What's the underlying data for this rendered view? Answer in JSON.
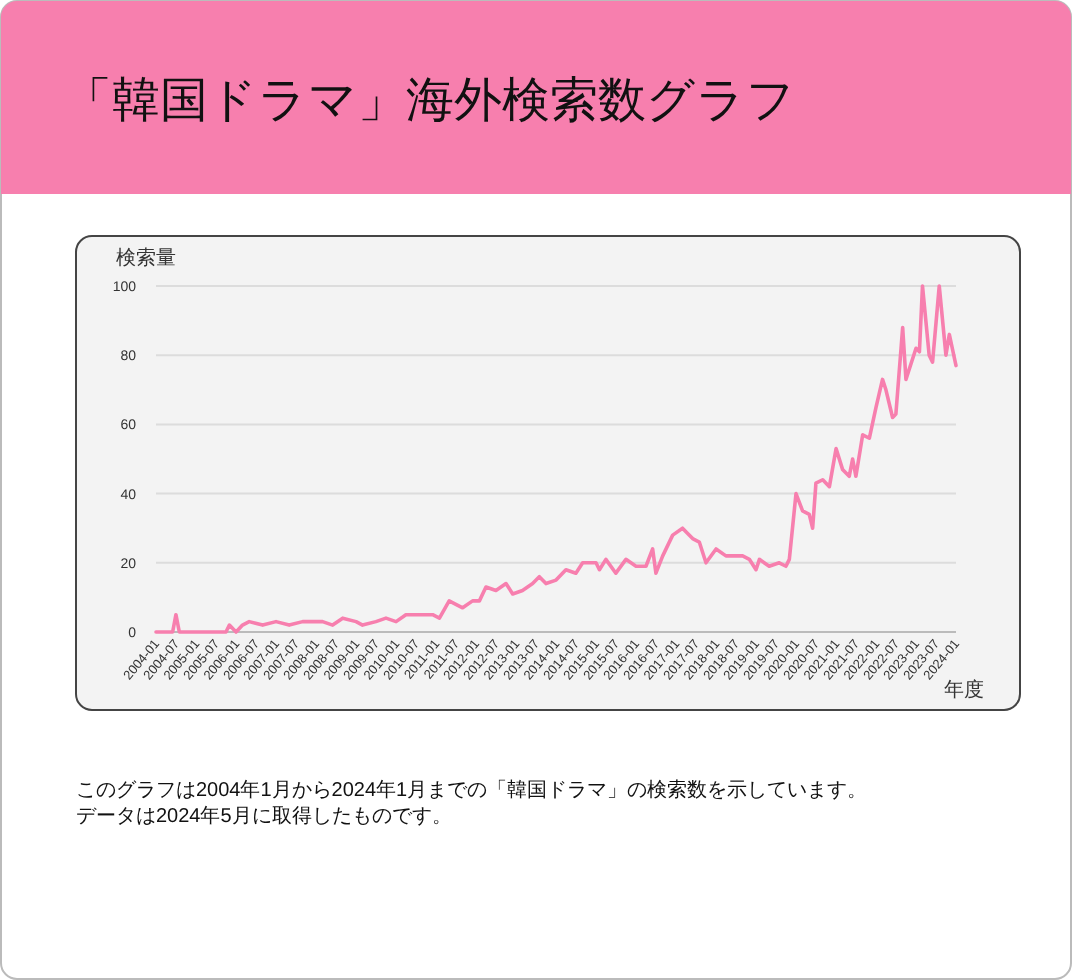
{
  "chart_data": {
    "type": "line",
    "title": "「韓国ドラマ」海外検索数グラフ",
    "ylabel": "検索量",
    "xlabel": "年度",
    "annotations": [
      "このグラフは2004年1月から2024年1月までの「韓国ドラマ」の検索数を示しています。",
      "データは2024年5月に取得したものです。"
    ],
    "series": [
      {
        "color": "#f77fae",
        "x": [
          "2004-01",
          "2004-06",
          "2004-07",
          "2004-08",
          "2005-10",
          "2005-11",
          "2006-01",
          "2006-03",
          "2006-05",
          "2006-09",
          "2007-01",
          "2007-05",
          "2007-09",
          "2008-03",
          "2008-06",
          "2008-09",
          "2009-01",
          "2009-03",
          "2009-07",
          "2009-10",
          "2010-01",
          "2010-04",
          "2010-12",
          "2011-02",
          "2011-05",
          "2011-07",
          "2011-09",
          "2011-12",
          "2012-02",
          "2012-04",
          "2012-07",
          "2012-10",
          "2012-12",
          "2013-03",
          "2013-06",
          "2013-08",
          "2013-10",
          "2014-01",
          "2014-04",
          "2014-07",
          "2014-09",
          "2015-01",
          "2015-02",
          "2015-04",
          "2015-07",
          "2015-10",
          "2016-01",
          "2016-04",
          "2016-06",
          "2016-07",
          "2016-09",
          "2016-12",
          "2017-03",
          "2017-04",
          "2017-06",
          "2017-08",
          "2017-10",
          "2018-01",
          "2018-04",
          "2018-07",
          "2018-09",
          "2018-11",
          "2019-01",
          "2019-02",
          "2019-05",
          "2019-08",
          "2019-10",
          "2019-11",
          "2020-01",
          "2020-03",
          "2020-05",
          "2020-06",
          "2020-07",
          "2020-09",
          "2020-11",
          "2021-01",
          "2021-03",
          "2021-05",
          "2021-06",
          "2021-07",
          "2021-09",
          "2021-11",
          "2022-01",
          "2022-03",
          "2022-04",
          "2022-06",
          "2022-07",
          "2022-09",
          "2022-10",
          "2023-01",
          "2023-02",
          "2023-03",
          "2023-05",
          "2023-06",
          "2023-08",
          "2023-10",
          "2023-11",
          "2024-01"
        ],
        "values": [
          0,
          0,
          5,
          0,
          0,
          2,
          0,
          2,
          3,
          2,
          3,
          2,
          3,
          3,
          2,
          4,
          3,
          2,
          3,
          4,
          3,
          5,
          5,
          4,
          9,
          8,
          7,
          9,
          9,
          13,
          12,
          14,
          11,
          12,
          14,
          16,
          14,
          15,
          18,
          17,
          20,
          20,
          18,
          21,
          17,
          21,
          19,
          19,
          24,
          17,
          22,
          28,
          30,
          29,
          27,
          26,
          20,
          24,
          22,
          22,
          22,
          21,
          18,
          21,
          19,
          20,
          19,
          21,
          40,
          35,
          34,
          30,
          43,
          44,
          42,
          53,
          47,
          45,
          50,
          45,
          57,
          56,
          65,
          73,
          70,
          62,
          63,
          88,
          73,
          82,
          81,
          100,
          80,
          78,
          100,
          80,
          86,
          77
        ]
      }
    ],
    "xlim": [
      "2004-01",
      "2024-01"
    ],
    "xticks": [
      "2004-01",
      "2004-07",
      "2005-01",
      "2005-07",
      "2006-01",
      "2006-07",
      "2007-01",
      "2007-07",
      "2008-01",
      "2008-07",
      "2009-01",
      "2009-07",
      "2010-01",
      "2010-07",
      "2011-01",
      "2011-07",
      "2012-01",
      "2012-07",
      "2013-01",
      "2013-07",
      "2014-01",
      "2014-07",
      "2015-01",
      "2015-07",
      "2016-01",
      "2016-07",
      "2017-01",
      "2017-07",
      "2018-01",
      "2018-07",
      "2019-01",
      "2019-07",
      "2020-01",
      "2020-07",
      "2021-01",
      "2021-07",
      "2022-01",
      "2022-07",
      "2023-01",
      "2023-07",
      "2024-01"
    ],
    "ylim": [
      0,
      100
    ],
    "yticks": [
      0,
      20,
      40,
      60,
      80,
      100
    ],
    "grid": "y",
    "marker": "none",
    "line_style": "solid"
  }
}
